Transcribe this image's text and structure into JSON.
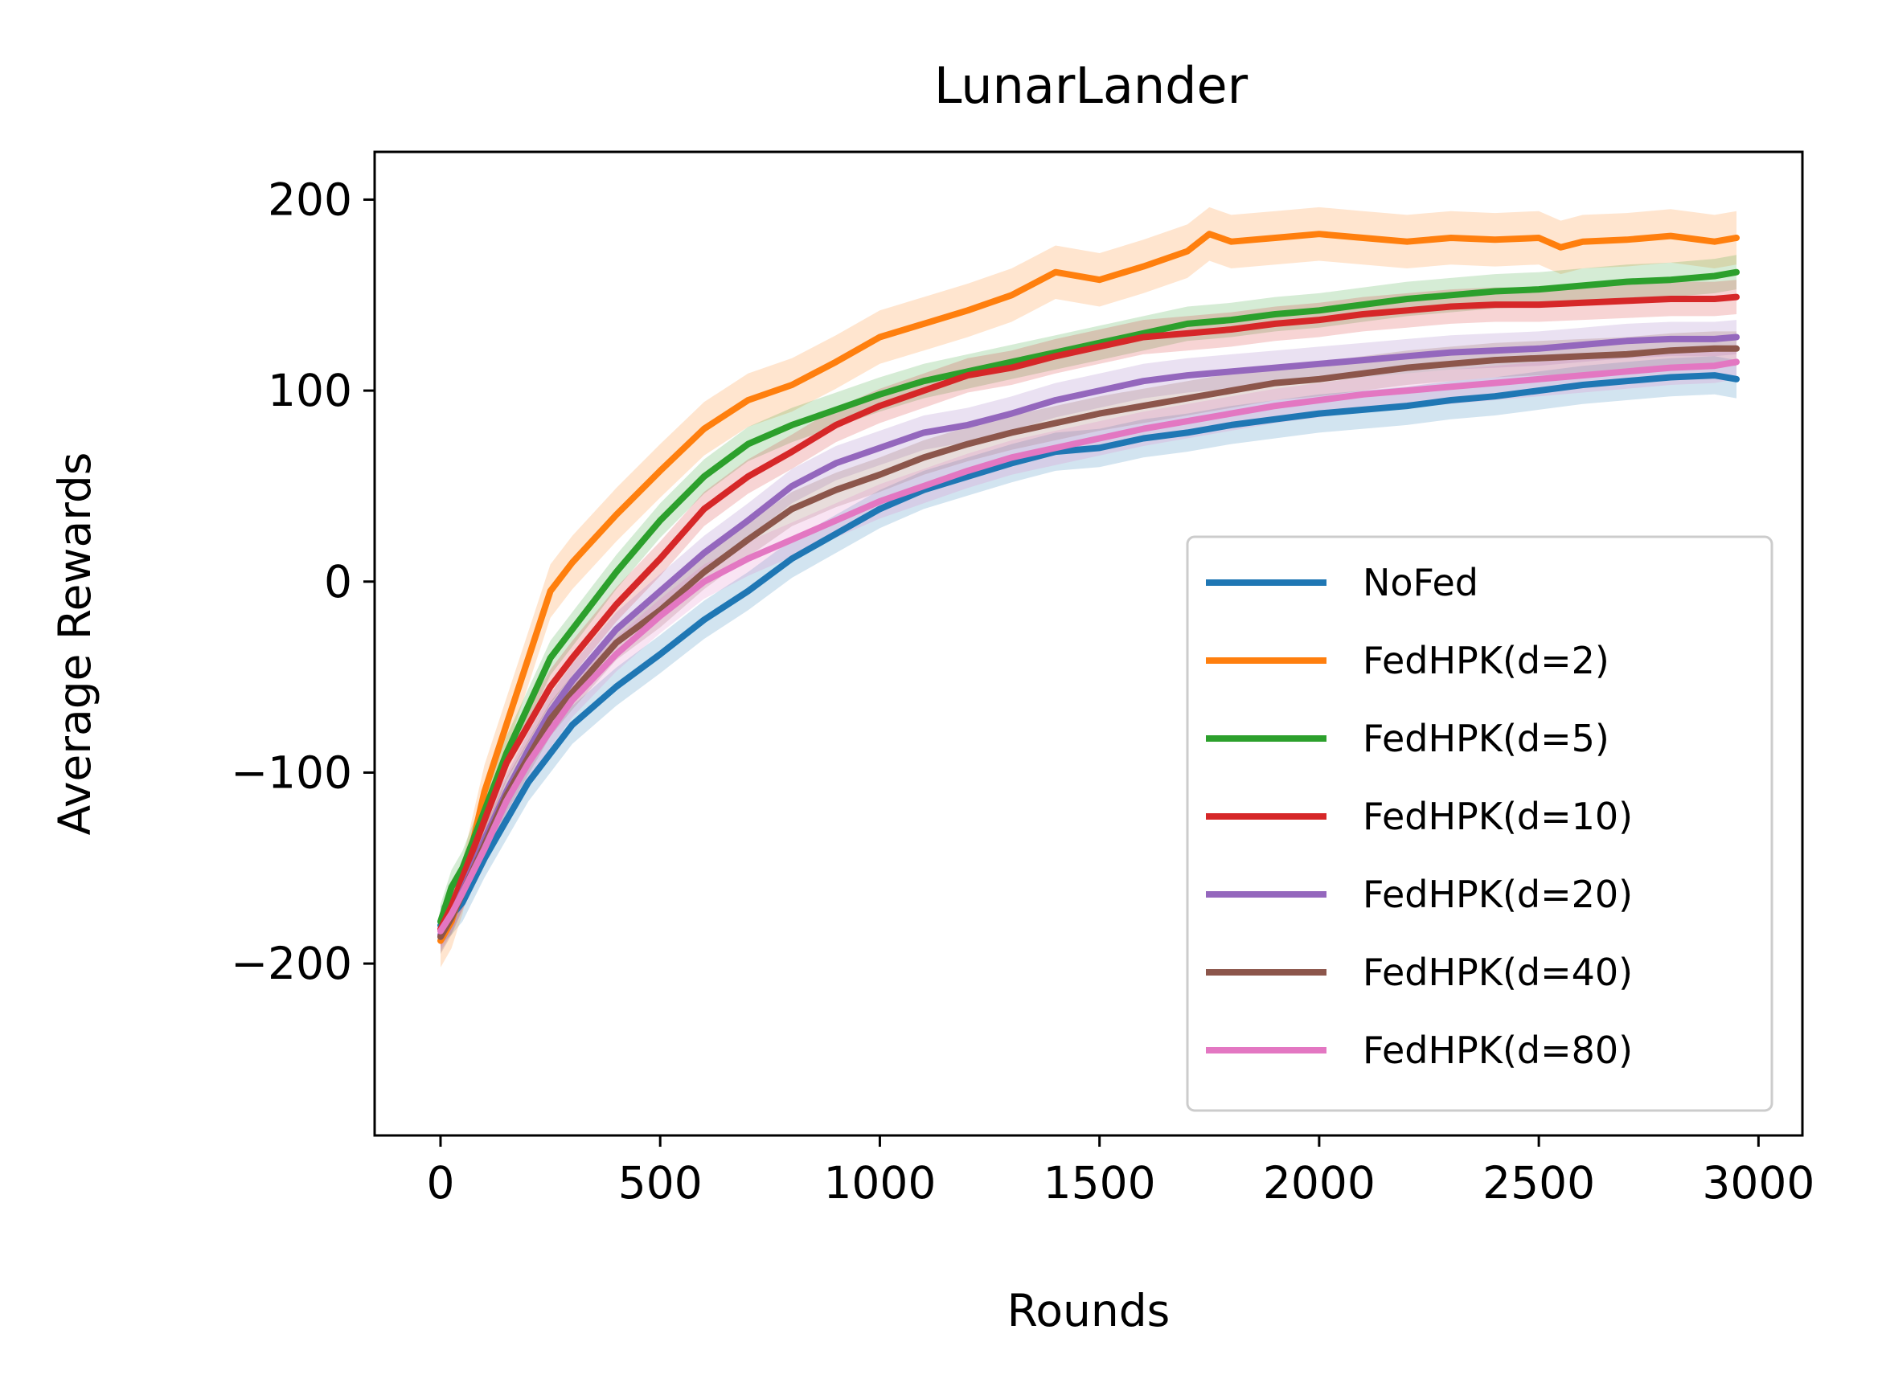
{
  "chart_data": {
    "type": "line",
    "title": "LunarLander",
    "xlabel": "Rounds",
    "ylabel": "Average Rewards",
    "xlim": [
      -150,
      3100
    ],
    "ylim": [
      -290,
      225
    ],
    "xticks": [
      0,
      500,
      1000,
      1500,
      2000,
      2500,
      3000
    ],
    "xtick_labels": [
      "0",
      "500",
      "1000",
      "1500",
      "2000",
      "2500",
      "3000"
    ],
    "yticks": [
      -200,
      -100,
      0,
      100,
      200
    ],
    "ytick_labels": [
      "−200",
      "−100",
      "0",
      "100",
      "200"
    ],
    "grid": false,
    "legend_position": "lower-right",
    "shaded_band": "variability band around each series",
    "series": [
      {
        "name": "NoFed",
        "color": "#1f77b4",
        "band": 10,
        "x": [
          0,
          25,
          50,
          100,
          150,
          200,
          300,
          400,
          500,
          600,
          700,
          800,
          900,
          1000,
          1100,
          1200,
          1300,
          1400,
          1500,
          1600,
          1700,
          1800,
          1900,
          2000,
          2100,
          2200,
          2300,
          2400,
          2500,
          2600,
          2700,
          2800,
          2900,
          2950
        ],
        "y": [
          -180,
          -175,
          -168,
          -145,
          -125,
          -105,
          -75,
          -55,
          -38,
          -20,
          -5,
          12,
          25,
          38,
          48,
          55,
          62,
          68,
          70,
          75,
          78,
          82,
          85,
          88,
          90,
          92,
          95,
          97,
          100,
          103,
          105,
          107,
          108,
          106
        ]
      },
      {
        "name": "FedHPK(d=2)",
        "color": "#ff7f0e",
        "band": 14,
        "x": [
          0,
          25,
          50,
          100,
          150,
          200,
          250,
          300,
          400,
          500,
          600,
          700,
          800,
          900,
          1000,
          1100,
          1200,
          1300,
          1400,
          1500,
          1600,
          1700,
          1750,
          1800,
          1900,
          2000,
          2100,
          2200,
          2300,
          2400,
          2500,
          2550,
          2600,
          2700,
          2800,
          2900,
          2950
        ],
        "y": [
          -188,
          -178,
          -160,
          -110,
          -75,
          -40,
          -5,
          10,
          35,
          58,
          80,
          95,
          103,
          115,
          128,
          135,
          142,
          150,
          162,
          158,
          165,
          173,
          182,
          178,
          180,
          182,
          180,
          178,
          180,
          179,
          180,
          175,
          178,
          179,
          181,
          178,
          180
        ]
      },
      {
        "name": "FedHPK(d=5)",
        "color": "#2ca02c",
        "band": 9,
        "x": [
          0,
          25,
          50,
          100,
          150,
          200,
          250,
          300,
          400,
          500,
          600,
          700,
          800,
          900,
          1000,
          1100,
          1200,
          1300,
          1400,
          1500,
          1600,
          1700,
          1800,
          1900,
          2000,
          2100,
          2200,
          2300,
          2400,
          2500,
          2600,
          2700,
          2800,
          2900,
          2950
        ],
        "y": [
          -178,
          -160,
          -150,
          -120,
          -90,
          -65,
          -40,
          -25,
          5,
          32,
          55,
          72,
          82,
          90,
          98,
          105,
          110,
          115,
          120,
          125,
          130,
          135,
          137,
          140,
          142,
          145,
          148,
          150,
          152,
          153,
          155,
          157,
          158,
          160,
          162
        ]
      },
      {
        "name": "FedHPK(d=10)",
        "color": "#d62728",
        "band": 9,
        "x": [
          0,
          25,
          50,
          100,
          150,
          200,
          250,
          300,
          400,
          500,
          600,
          700,
          800,
          900,
          1000,
          1100,
          1200,
          1300,
          1400,
          1500,
          1600,
          1700,
          1800,
          1900,
          2000,
          2100,
          2200,
          2300,
          2400,
          2500,
          2600,
          2700,
          2800,
          2900,
          2950
        ],
        "y": [
          -182,
          -170,
          -155,
          -125,
          -95,
          -75,
          -55,
          -40,
          -12,
          12,
          38,
          55,
          68,
          82,
          92,
          100,
          108,
          112,
          118,
          123,
          128,
          130,
          132,
          135,
          137,
          140,
          142,
          144,
          145,
          145,
          146,
          147,
          148,
          148,
          149
        ]
      },
      {
        "name": "FedHPK(d=20)",
        "color": "#9467bd",
        "band": 9,
        "x": [
          0,
          25,
          50,
          100,
          150,
          200,
          250,
          300,
          400,
          500,
          600,
          700,
          800,
          900,
          1000,
          1100,
          1200,
          1300,
          1400,
          1500,
          1600,
          1700,
          1800,
          1900,
          2000,
          2100,
          2200,
          2300,
          2400,
          2500,
          2600,
          2700,
          2800,
          2900,
          2950
        ],
        "y": [
          -185,
          -175,
          -162,
          -135,
          -110,
          -88,
          -68,
          -52,
          -25,
          -5,
          15,
          32,
          50,
          62,
          70,
          78,
          82,
          88,
          95,
          100,
          105,
          108,
          110,
          112,
          114,
          116,
          118,
          120,
          121,
          122,
          124,
          126,
          127,
          127,
          128
        ]
      },
      {
        "name": "FedHPK(d=40)",
        "color": "#8c564b",
        "band": 9,
        "x": [
          0,
          25,
          50,
          100,
          150,
          200,
          250,
          300,
          400,
          500,
          600,
          700,
          800,
          900,
          1000,
          1100,
          1200,
          1300,
          1400,
          1500,
          1600,
          1700,
          1800,
          1900,
          2000,
          2100,
          2200,
          2300,
          2400,
          2500,
          2600,
          2700,
          2800,
          2900,
          2950
        ],
        "y": [
          -186,
          -176,
          -163,
          -138,
          -112,
          -92,
          -72,
          -58,
          -32,
          -15,
          5,
          22,
          38,
          48,
          56,
          65,
          72,
          78,
          83,
          88,
          92,
          96,
          100,
          104,
          106,
          109,
          112,
          114,
          116,
          117,
          118,
          119,
          121,
          122,
          122
        ]
      },
      {
        "name": "FedHPK(d=80)",
        "color": "#e377c2",
        "band": 9,
        "x": [
          0,
          25,
          50,
          100,
          150,
          200,
          250,
          300,
          400,
          500,
          600,
          700,
          800,
          900,
          1000,
          1100,
          1200,
          1300,
          1400,
          1500,
          1600,
          1700,
          1800,
          1900,
          2000,
          2100,
          2200,
          2300,
          2400,
          2500,
          2600,
          2700,
          2800,
          2900,
          2950
        ],
        "y": [
          -183,
          -174,
          -163,
          -140,
          -115,
          -95,
          -78,
          -62,
          -38,
          -18,
          0,
          12,
          22,
          32,
          42,
          50,
          58,
          65,
          70,
          75,
          80,
          84,
          88,
          92,
          95,
          98,
          100,
          102,
          104,
          106,
          108,
          110,
          112,
          113,
          115
        ]
      }
    ]
  }
}
